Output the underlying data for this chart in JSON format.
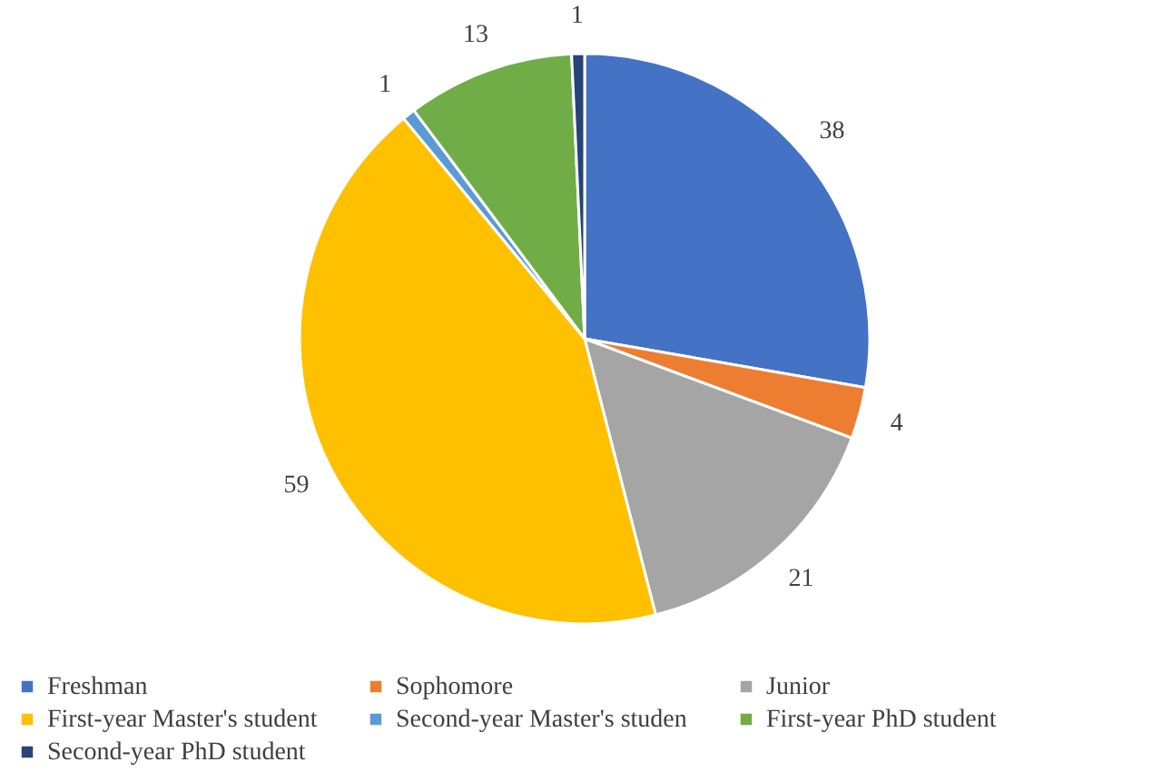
{
  "chart_data": {
    "type": "pie",
    "categories": [
      "Freshman",
      "Sophomore",
      "Junior",
      "First-year Master's student",
      "Second-year Master's studen",
      "First-year PhD student",
      "Second-year PhD student"
    ],
    "values": [
      38,
      4,
      21,
      59,
      1,
      13,
      1
    ],
    "colors": [
      "#4472c4",
      "#ed7d31",
      "#a5a5a5",
      "#ffc000",
      "#5b9bd5",
      "#70ad47",
      "#264478"
    ],
    "data_labels": true,
    "legend": "bottom"
  }
}
